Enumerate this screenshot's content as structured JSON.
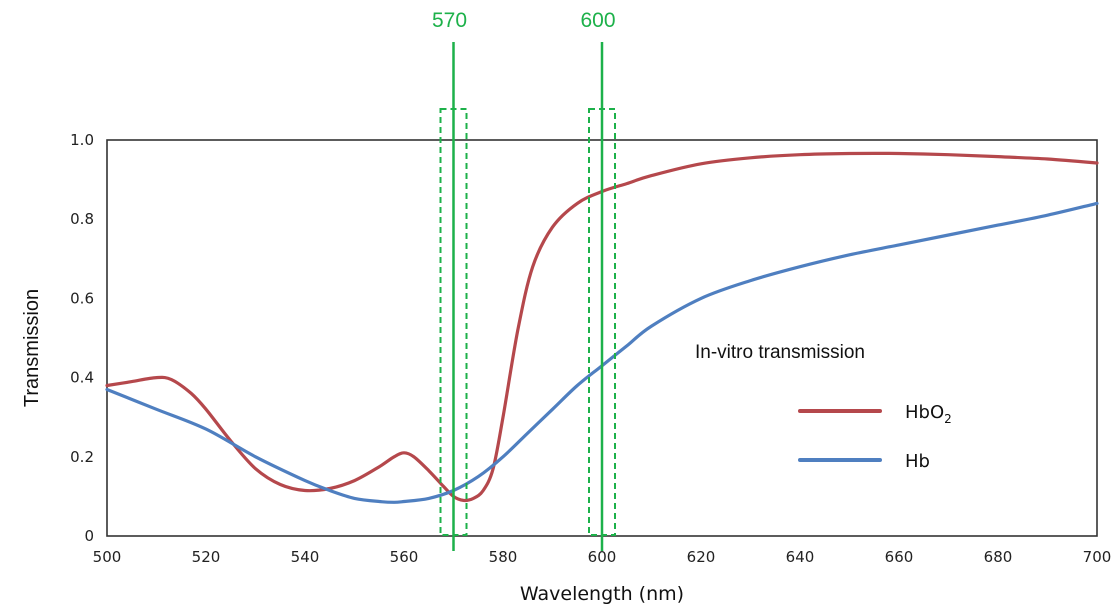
{
  "chart_data": {
    "type": "line",
    "xlabel": "Wavelength (nm)",
    "ylabel": "Transmission",
    "xlim": [
      500,
      700
    ],
    "ylim": [
      0,
      1.0
    ],
    "x_ticks": [
      "500",
      "520",
      "540",
      "560",
      "580",
      "600",
      "620",
      "640",
      "660",
      "680",
      "700"
    ],
    "y_ticks": [
      "0",
      "0.2",
      "0.4",
      "0.6",
      "0.8",
      "1.0"
    ],
    "grid": false,
    "annotation": "In-vitro transmission",
    "legend_position": "center-right",
    "series": [
      {
        "name": "HbO",
        "name_sub": "2",
        "color": "#b5484c",
        "x": [
          500,
          505,
          510,
          513,
          517,
          520,
          525,
          530,
          535,
          540,
          545,
          550,
          555,
          558,
          560,
          562,
          565,
          568,
          570,
          572,
          574,
          576,
          578,
          580,
          583,
          586,
          590,
          595,
          600,
          605,
          610,
          620,
          630,
          640,
          650,
          660,
          670,
          680,
          690,
          700
        ],
        "y": [
          0.38,
          0.39,
          0.4,
          0.395,
          0.36,
          0.32,
          0.24,
          0.17,
          0.13,
          0.115,
          0.12,
          0.14,
          0.175,
          0.2,
          0.21,
          0.2,
          0.165,
          0.125,
          0.1,
          0.09,
          0.095,
          0.115,
          0.17,
          0.3,
          0.52,
          0.68,
          0.78,
          0.84,
          0.87,
          0.89,
          0.91,
          0.94,
          0.955,
          0.963,
          0.966,
          0.966,
          0.963,
          0.958,
          0.952,
          0.942
        ]
      },
      {
        "name": "Hb",
        "color": "#4f7fc0",
        "x": [
          500,
          510,
          520,
          530,
          540,
          545,
          550,
          555,
          558,
          560,
          565,
          570,
          575,
          580,
          585,
          590,
          595,
          600,
          605,
          610,
          620,
          630,
          640,
          650,
          660,
          670,
          680,
          690,
          700
        ],
        "y": [
          0.37,
          0.32,
          0.27,
          0.2,
          0.14,
          0.115,
          0.095,
          0.087,
          0.085,
          0.087,
          0.095,
          0.115,
          0.15,
          0.2,
          0.26,
          0.32,
          0.38,
          0.43,
          0.48,
          0.53,
          0.6,
          0.645,
          0.68,
          0.71,
          0.735,
          0.76,
          0.785,
          0.81,
          0.84
        ]
      }
    ],
    "markers": [
      {
        "label": "570",
        "x": 570,
        "color": "#1db14a"
      },
      {
        "label": "600",
        "x": 600,
        "color": "#1db14a"
      }
    ]
  }
}
